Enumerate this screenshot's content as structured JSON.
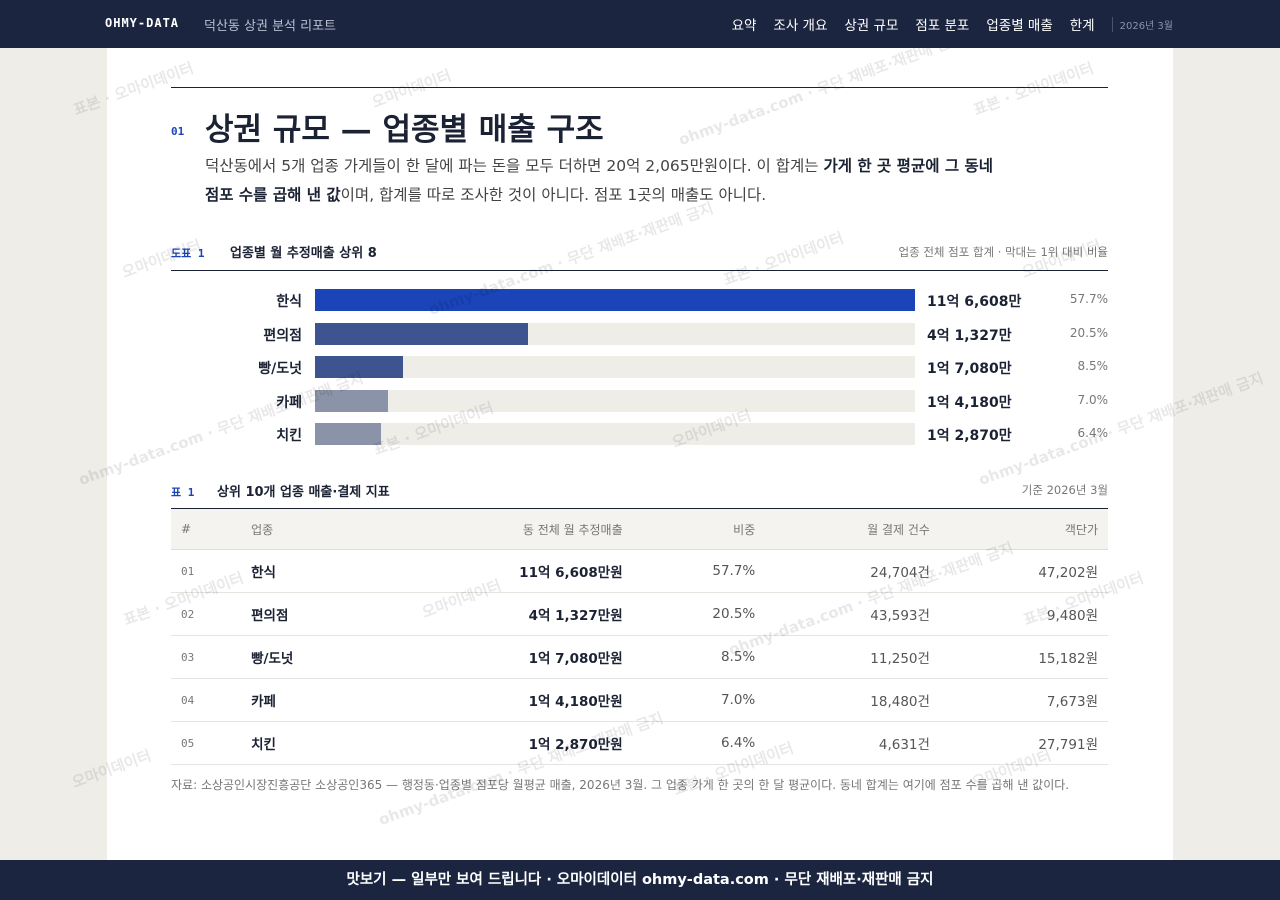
{
  "nav": {
    "brand": "OHMY-DATA",
    "subtitle": "덕산동 상권 분석 리포트",
    "links": [
      "요약",
      "조사 개요",
      "상권 규모",
      "점포 분포",
      "업종별 매출",
      "한계"
    ],
    "date": "2026년 3월"
  },
  "section": {
    "number": "01",
    "title": "상권 규모 — 업종별 매출 구조",
    "lead": [
      {
        "text": "덕산동에서 5개 업종 가게들이 한 달에 파는 돈을 모두 더하면 20억 2,065만원이다. 이 합계는 ",
        "bold": false
      },
      {
        "text": "가게 한 곳 평균에 그 동네 점포 수를 곱해 낸 값",
        "bold": true
      },
      {
        "text": "이며, 합계를 따로 조사한 것이 아니다. 점포 1곳의 매출도 아니다.",
        "bold": false
      }
    ]
  },
  "figure": {
    "label": "도표 1",
    "title": "업종별 월 추정매출 상위 8",
    "note": "업종 전체 점포 합계 · 막대는 1위 대비 비율",
    "bars": [
      {
        "category": "한식",
        "value": 116608,
        "value_label": "11억 6,608만",
        "share": "57.7%",
        "color": "#1a44b8"
      },
      {
        "category": "편의점",
        "value": 41327,
        "value_label": "4억 1,327만",
        "share": "20.5%",
        "color": "#3d5490"
      },
      {
        "category": "빵/도넛",
        "value": 17080,
        "value_label": "1억 7,080만",
        "share": "8.5%",
        "color": "#3d5490"
      },
      {
        "category": "카페",
        "value": 14180,
        "value_label": "1억 4,180만",
        "share": "7.0%",
        "color": "#8a93a8"
      },
      {
        "category": "치킨",
        "value": 12870,
        "value_label": "1억 2,870만",
        "share": "6.4%",
        "color": "#8a93a8"
      }
    ]
  },
  "table": {
    "label": "표 1",
    "title": "상위 10개 업종 매출·결제 지표",
    "note": "기준 2026년 3월",
    "columns": [
      "#",
      "업종",
      "동 전체 월 추정매출",
      "비중",
      "월 결제 건수",
      "객단가"
    ],
    "rows": [
      [
        "01",
        "한식",
        "11억 6,608만원",
        "57.7%",
        "24,704건",
        "47,202원"
      ],
      [
        "02",
        "편의점",
        "4억 1,327만원",
        "20.5%",
        "43,593건",
        "9,480원"
      ],
      [
        "03",
        "빵/도넛",
        "1억 7,080만원",
        "8.5%",
        "11,250건",
        "15,182원"
      ],
      [
        "04",
        "카페",
        "1억 4,180만원",
        "7.0%",
        "18,480건",
        "7,673원"
      ],
      [
        "05",
        "치킨",
        "1억 2,870만원",
        "6.4%",
        "4,631건",
        "27,791원"
      ]
    ]
  },
  "footnote": "자료: 소상공인시장진흥공단 소상공인365 — 행정동·업종별 점포당 월평균 매출, 2026년 3월. 그 업종 가게 한 곳의 한 달 평균이다. 동네 합계는 여기에 점포 수를 곱해 낸 값이다.",
  "footer": "맛보기 — 일부만 보여 드립니다 · 오마이데이터 ohmy-data.com · 무단 재배포·재판매 금지",
  "watermarks": [
    "표본 · 오마이데이터",
    "오마이데이터",
    "ohmy-data.com · 무단 재배포·재판매 금지"
  ]
}
